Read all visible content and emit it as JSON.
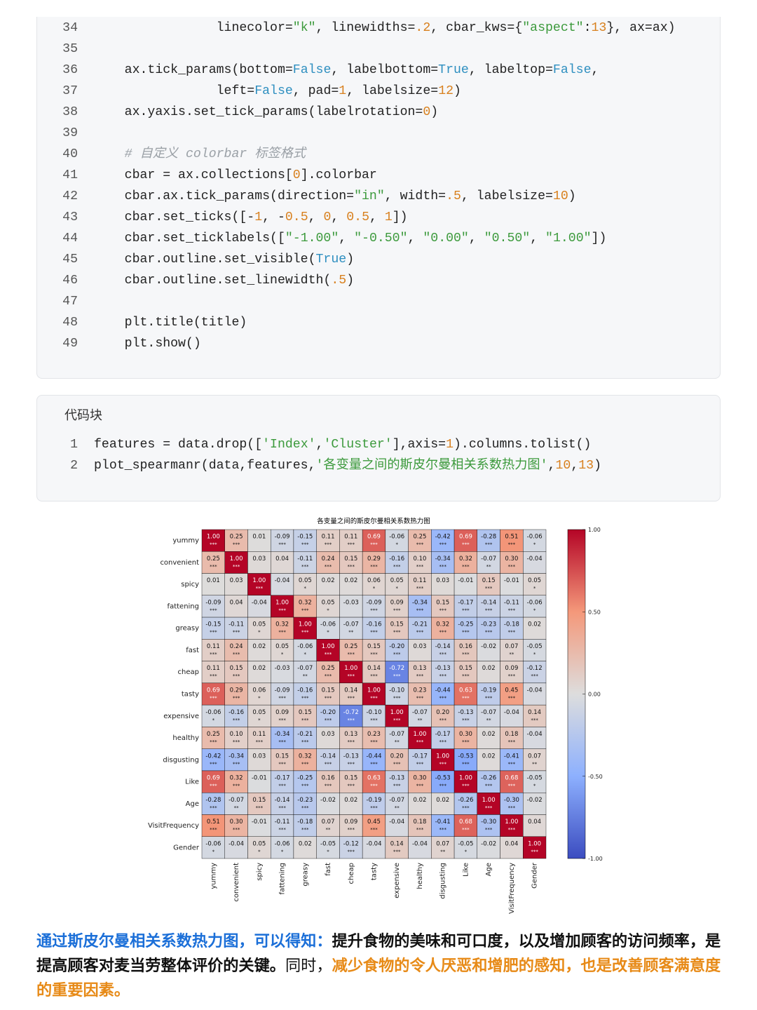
{
  "code_block_1": {
    "line_numbers": [
      34,
      35,
      36,
      37,
      38,
      39,
      40,
      41,
      42,
      43,
      44,
      45,
      46,
      47,
      48,
      49
    ],
    "lines": [
      "                linecolor=\"k\", linewidths=.2, cbar_kws={\"aspect\":13}, ax=ax)",
      null,
      "    ax.tick_params(bottom=False, labelbottom=True, labeltop=False,",
      "                left=False, pad=1, labelsize=12)",
      "    ax.yaxis.set_tick_params(labelrotation=0)",
      null,
      "    # 自定义 colorbar 标签格式",
      "    cbar = ax.collections[0].colorbar",
      "    cbar.ax.tick_params(direction=\"in\", width=.5, labelsize=10)",
      "    cbar.set_ticks([-1, -0.5, 0, 0.5, 1])",
      "    cbar.set_ticklabels([\"-1.00\", \"-0.50\", \"0.00\", \"0.50\", \"1.00\"])",
      "    cbar.outline.set_visible(True)",
      "    cbar.outline.set_linewidth(.5)",
      null,
      "    plt.title(title)",
      "    plt.show()"
    ]
  },
  "code_block_2": {
    "title": "代码块",
    "line_numbers": [
      1,
      2
    ],
    "lines": [
      "features = data.drop(['Index','Cluster'],axis=1).columns.tolist()",
      "plot_spearmanr(data,features,'各变量之间的斯皮尔曼相关系数热力图',10,13)"
    ]
  },
  "chart_data": {
    "type": "heatmap",
    "title": "各变量之间的斯皮尔曼相关系数热力图",
    "colormap": "coolwarm",
    "categories": [
      "yummy",
      "convenient",
      "spicy",
      "fattening",
      "greasy",
      "fast",
      "cheap",
      "tasty",
      "expensive",
      "healthy",
      "disgusting",
      "Like",
      "Age",
      "VisitFrequency",
      "Gender"
    ],
    "values": [
      [
        1,
        0.25,
        0.01,
        -0.09,
        -0.15,
        0.11,
        0.11,
        0.69,
        -0.06,
        0.25,
        -0.42,
        0.69,
        -0.28,
        0.51,
        -0.06
      ],
      [
        0.25,
        1,
        0.03,
        0.04,
        -0.11,
        0.24,
        0.15,
        0.29,
        -0.16,
        0.1,
        -0.34,
        0.32,
        -0.07,
        0.3,
        -0.04
      ],
      [
        0.01,
        0.03,
        1,
        -0.04,
        0.05,
        0.02,
        0.02,
        0.06,
        0.05,
        0.11,
        0.03,
        -0.01,
        0.15,
        -0.01,
        0.05
      ],
      [
        -0.09,
        0.04,
        -0.04,
        1,
        0.32,
        0.05,
        -0.03,
        -0.09,
        0.09,
        -0.34,
        0.15,
        -0.17,
        -0.14,
        -0.11,
        -0.06
      ],
      [
        -0.15,
        -0.11,
        0.05,
        0.32,
        1,
        -0.06,
        -0.07,
        -0.16,
        0.15,
        -0.21,
        0.32,
        -0.25,
        -0.23,
        -0.18,
        0.02
      ],
      [
        0.11,
        0.24,
        0.02,
        0.05,
        -0.06,
        1,
        0.25,
        0.15,
        -0.2,
        0.03,
        -0.14,
        0.16,
        -0.02,
        0.07,
        -0.05
      ],
      [
        0.11,
        0.15,
        0.02,
        -0.03,
        -0.07,
        0.25,
        1,
        0.14,
        -0.72,
        0.13,
        -0.13,
        0.15,
        0.02,
        0.09,
        -0.12
      ],
      [
        0.69,
        0.29,
        0.06,
        -0.09,
        -0.16,
        0.15,
        0.14,
        1,
        -0.1,
        0.23,
        -0.44,
        0.63,
        -0.19,
        0.45,
        -0.04
      ],
      [
        -0.06,
        -0.16,
        0.05,
        0.09,
        0.15,
        -0.2,
        -0.72,
        -0.1,
        1,
        -0.07,
        0.2,
        -0.13,
        -0.07,
        -0.04,
        0.14
      ],
      [
        0.25,
        0.1,
        0.11,
        -0.34,
        -0.21,
        0.03,
        0.13,
        0.23,
        -0.07,
        1,
        -0.17,
        0.3,
        0.02,
        0.18,
        -0.04
      ],
      [
        -0.42,
        -0.34,
        0.03,
        0.15,
        0.32,
        -0.14,
        -0.13,
        -0.44,
        0.2,
        -0.17,
        1,
        -0.53,
        0.02,
        -0.41,
        0.07
      ],
      [
        0.69,
        0.32,
        -0.01,
        -0.17,
        -0.25,
        0.16,
        0.15,
        0.63,
        -0.13,
        0.3,
        -0.53,
        1,
        -0.26,
        0.68,
        -0.05
      ],
      [
        -0.28,
        -0.07,
        0.15,
        -0.14,
        -0.23,
        -0.02,
        0.02,
        -0.19,
        -0.07,
        0.02,
        0.02,
        -0.26,
        1,
        -0.3,
        -0.02
      ],
      [
        0.51,
        0.3,
        -0.01,
        -0.11,
        -0.18,
        0.07,
        0.09,
        0.45,
        -0.04,
        0.18,
        -0.41,
        0.68,
        -0.3,
        1,
        0.04
      ],
      [
        -0.06,
        -0.04,
        0.05,
        -0.06,
        0.02,
        -0.05,
        -0.12,
        -0.04,
        0.14,
        -0.04,
        0.07,
        -0.05,
        -0.02,
        0.04,
        1
      ]
    ],
    "value_labels": [
      [
        "1.00",
        "0.25",
        "0.01",
        "-0.09",
        "-0.15",
        "0.11",
        "0.11",
        "0.69",
        "-0.06",
        "0.25",
        "-0.42",
        "0.69",
        "-0.28",
        "0.51",
        "-0.06"
      ],
      [
        "0.25",
        "1.00",
        "0.03",
        "0.04",
        "-0.11",
        "0.24",
        "0.15",
        "0.29",
        "-0.16",
        "0.10",
        "-0.34",
        "0.32",
        "-0.07",
        "0.30",
        "-0.04"
      ],
      [
        "0.01",
        "0.03",
        "1.00",
        "-0.04",
        "0.05",
        "0.02",
        "0.02",
        "0.06",
        "0.05",
        "0.11",
        "0.03",
        "-0.01",
        "0.15",
        "-0.01",
        "0.05"
      ],
      [
        "-0.09",
        "0.04",
        "-0.04",
        "1.00",
        "0.32",
        "0.05",
        "-0.03",
        "-0.09",
        "0.09",
        "-0.34",
        "0.15",
        "-0.17",
        "-0.14",
        "-0.11",
        "-0.06"
      ],
      [
        "-0.15",
        "-0.11",
        "0.05",
        "0.32",
        "1.00",
        "-0.06",
        "-0.07",
        "-0.16",
        "0.15",
        "-0.21",
        "0.32",
        "-0.25",
        "-0.23",
        "-0.18",
        "0.02"
      ],
      [
        "0.11",
        "0.24",
        "0.02",
        "0.05",
        "-0.06",
        "1.00",
        "0.25",
        "0.15",
        "-0.20",
        "0.03",
        "-0.14",
        "0.16",
        "-0.02",
        "0.07",
        "-0.05"
      ],
      [
        "0.11",
        "0.15",
        "0.02",
        "-0.03",
        "-0.07",
        "0.25",
        "1.00",
        "0.14",
        "-0.72",
        "0.13",
        "-0.13",
        "0.15",
        "0.02",
        "0.09",
        "-0.12"
      ],
      [
        "0.69",
        "0.29",
        "0.06",
        "-0.09",
        "-0.16",
        "0.15",
        "0.14",
        "1.00",
        "-0.10",
        "0.23",
        "-0.44",
        "0.63",
        "-0.19",
        "0.45",
        "-0.04"
      ],
      [
        "-0.06",
        "-0.16",
        "0.05",
        "0.09",
        "0.15",
        "-0.20",
        "-0.72",
        "-0.10",
        "1.00",
        "-0.07",
        "0.20",
        "-0.13",
        "-0.07",
        "-0.04",
        "0.14"
      ],
      [
        "0.25",
        "0.10",
        "0.11",
        "-0.34",
        "-0.21",
        "0.03",
        "0.13",
        "0.23",
        "-0.07",
        "1.00",
        "-0.17",
        "0.30",
        "0.02",
        "0.18",
        "-0.04"
      ],
      [
        "-0.42",
        "-0.34",
        "0.03",
        "0.15",
        "0.32",
        "-0.14",
        "-0.13",
        "-0.44",
        "0.20",
        "-0.17",
        "1.00",
        "-0.53",
        "0.02",
        "-0.41",
        "0.07"
      ],
      [
        "0.69",
        "0.32",
        "-0.01",
        "-0.17",
        "-0.25",
        "0.16",
        "0.15",
        "0.63",
        "-0.13",
        "0.30",
        "-0.53",
        "1.00",
        "-0.26",
        "0.68",
        "-0.05"
      ],
      [
        "-0.28",
        "-0.07",
        "0.15",
        "-0.14",
        "-0.23",
        "-0.02",
        "0.02",
        "-0.19",
        "-0.07",
        "0.02",
        "0.02",
        "-0.26",
        "1.00",
        "-0.30",
        "-0.02"
      ],
      [
        "0.51",
        "0.30",
        "-0.01",
        "-0.11",
        "-0.18",
        "0.07",
        "0.09",
        "0.45",
        "-0.04",
        "0.18",
        "-0.41",
        "0.68",
        "-0.30",
        "1.00",
        "0.04"
      ],
      [
        "-0.06",
        "-0.04",
        "0.05",
        "-0.06",
        "0.02",
        "-0.05",
        "-0.12",
        "-0.04",
        "0.14",
        "-0.04",
        "0.07",
        "-0.05",
        "-0.02",
        "0.04",
        "1.00"
      ]
    ],
    "significance": [
      [
        "***",
        "***",
        null,
        "***",
        "***",
        "***",
        "***",
        "***",
        "*",
        "***",
        "***",
        "***",
        "***",
        "***",
        "*"
      ],
      [
        "***",
        "***",
        null,
        null,
        "***",
        "***",
        "***",
        "***",
        "***",
        "***",
        "***",
        "***",
        "**",
        "***",
        null
      ],
      [
        null,
        null,
        "***",
        null,
        "*",
        null,
        null,
        "*",
        "*",
        "***",
        null,
        null,
        "***",
        null,
        "*"
      ],
      [
        "***",
        null,
        null,
        "***",
        "***",
        "*",
        null,
        "***",
        "***",
        "***",
        "***",
        "***",
        "***",
        "***",
        "*"
      ],
      [
        "***",
        "***",
        "*",
        "***",
        "***",
        "*",
        "**",
        "***",
        "***",
        "***",
        "***",
        "***",
        "***",
        "***",
        null
      ],
      [
        "***",
        "***",
        null,
        "*",
        "*",
        "***",
        "***",
        "***",
        "***",
        null,
        "***",
        "***",
        null,
        "**",
        "*"
      ],
      [
        "***",
        "***",
        null,
        null,
        "**",
        "***",
        "***",
        "***",
        "***",
        "***",
        "***",
        "***",
        null,
        "***",
        "***"
      ],
      [
        "***",
        "***",
        "*",
        "***",
        "***",
        "***",
        "***",
        "***",
        "***",
        "***",
        "***",
        "***",
        "***",
        "***",
        null
      ],
      [
        "*",
        "***",
        "*",
        "***",
        "***",
        "***",
        "***",
        "***",
        "***",
        "**",
        "***",
        "***",
        "**",
        null,
        "***"
      ],
      [
        "***",
        "***",
        "***",
        "***",
        "***",
        null,
        "***",
        "***",
        "**",
        "***",
        "***",
        "***",
        null,
        "***",
        null
      ],
      [
        "***",
        "***",
        null,
        "***",
        "***",
        "***",
        "***",
        "***",
        "***",
        "***",
        "***",
        "***",
        null,
        "***",
        "**"
      ],
      [
        "***",
        "***",
        null,
        "***",
        "***",
        "***",
        "***",
        "***",
        "***",
        "***",
        "***",
        "***",
        "***",
        "***",
        "*"
      ],
      [
        "***",
        "**",
        "***",
        "***",
        "***",
        null,
        null,
        "***",
        "**",
        null,
        null,
        "***",
        "***",
        "***",
        null
      ],
      [
        "***",
        "***",
        null,
        "***",
        "***",
        "**",
        "***",
        "***",
        null,
        "***",
        "***",
        "***",
        "***",
        "***",
        null
      ],
      [
        "*",
        null,
        "*",
        "*",
        null,
        "*",
        "***",
        null,
        "***",
        null,
        "**",
        "*",
        null,
        null,
        "***"
      ]
    ],
    "zlim": [
      -1,
      1
    ],
    "colorbar_ticks": [
      {
        "value": -1,
        "label": "-1.00"
      },
      {
        "value": -0.5,
        "label": "-0.50"
      },
      {
        "value": 0,
        "label": "0.00"
      },
      {
        "value": 0.5,
        "label": "0.50"
      },
      {
        "value": 1,
        "label": "1.00"
      }
    ]
  },
  "paragraph": {
    "segments": [
      "通过斯皮尔曼相关系数热力图，可以得知：",
      "提升食物的美味和可口度，以及增加顾客的访问频率，是提高顾客对麦当劳整体评价的关键。",
      "同时，",
      "减少食物的令人厌恶和增肥的感知，也是改善顾客满意度的重要因素。"
    ]
  }
}
